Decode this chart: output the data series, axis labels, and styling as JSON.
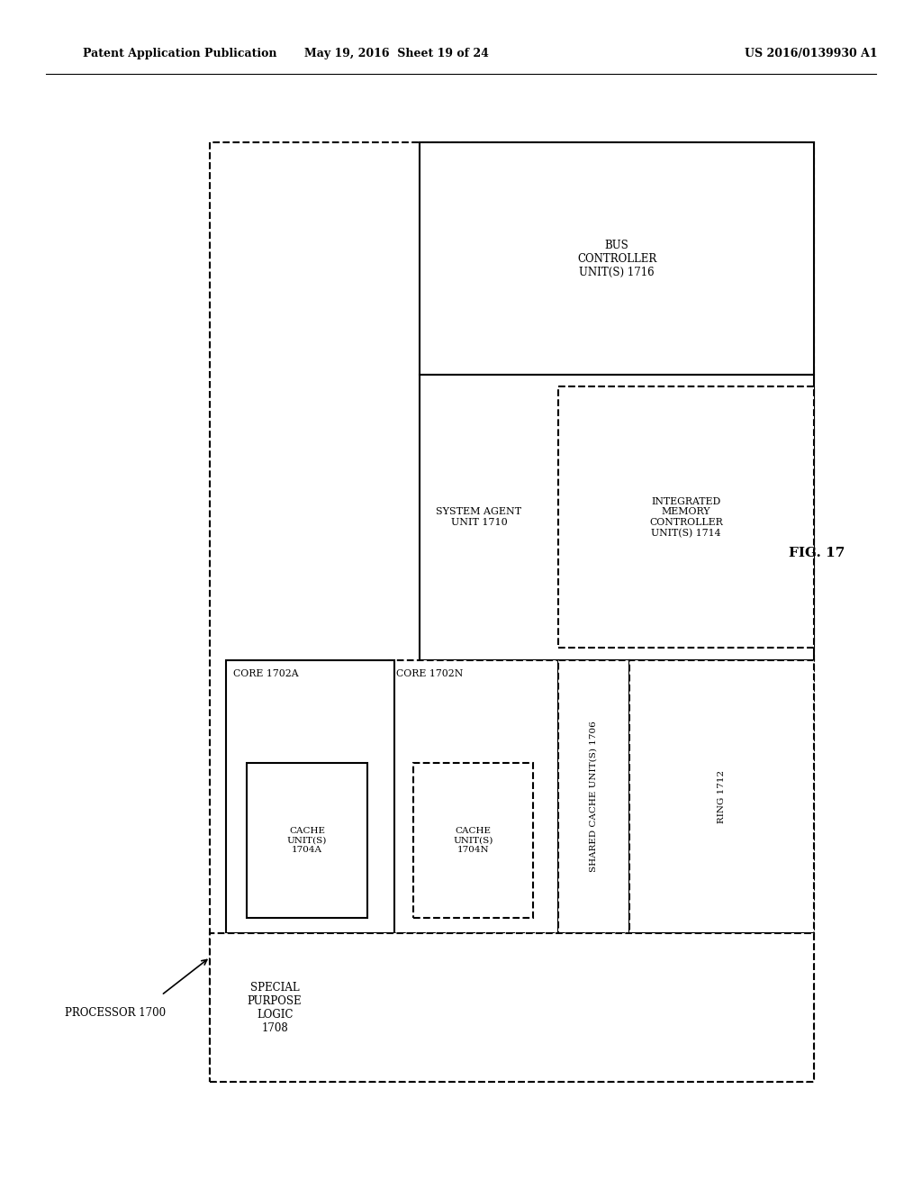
{
  "header_left": "Patent Application Publication",
  "header_mid": "May 19, 2016  Sheet 19 of 24",
  "header_right": "US 2016/0139930 A1",
  "fig_label": "FIG. 17",
  "processor_label": "PROCESSOR 1700",
  "background_color": "#ffffff",
  "text_color": "#000000"
}
